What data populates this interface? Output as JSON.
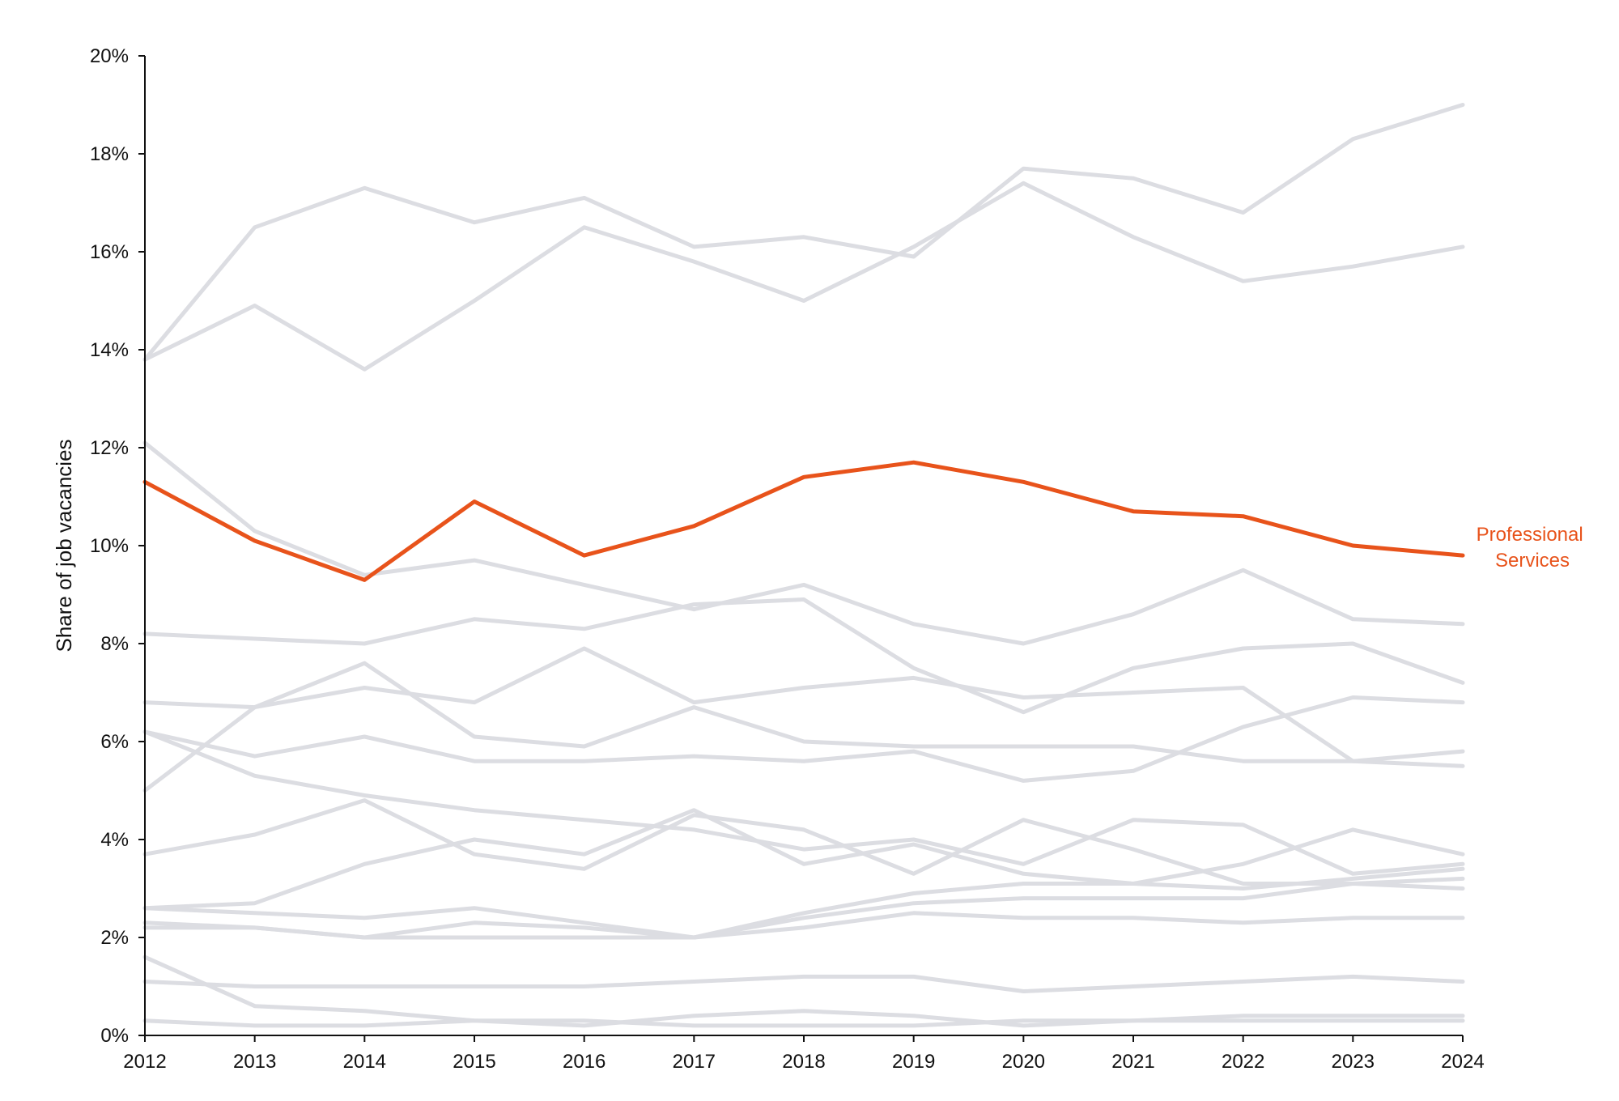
{
  "chart_data": {
    "type": "line",
    "title": "",
    "xlabel": "",
    "ylabel": "Share of job vacancies",
    "x": [
      2012,
      2013,
      2014,
      2015,
      2016,
      2017,
      2018,
      2019,
      2020,
      2021,
      2022,
      2023,
      2024
    ],
    "xlim": [
      2012,
      2024
    ],
    "ylim": [
      0,
      20
    ],
    "y_ticks": [
      "0%",
      "2%",
      "4%",
      "6%",
      "8%",
      "10%",
      "12%",
      "14%",
      "16%",
      "18%",
      "20%"
    ],
    "x_ticks": [
      "2012",
      "2013",
      "2014",
      "2015",
      "2016",
      "2017",
      "2018",
      "2019",
      "2020",
      "2021",
      "2022",
      "2023",
      "2024"
    ],
    "grid": false,
    "legend": "none",
    "colors": {
      "highlight": "#e8531b",
      "background_series": "#dcdde2",
      "axis": "#111111"
    },
    "highlight_label": [
      "Professional",
      "Services"
    ],
    "series": [
      {
        "name": "Professional Services",
        "highlight": true,
        "values": [
          11.3,
          10.1,
          9.3,
          10.9,
          9.8,
          10.4,
          11.4,
          11.7,
          11.3,
          10.7,
          10.6,
          10.0,
          9.8
        ]
      },
      {
        "values": [
          13.8,
          16.5,
          17.3,
          16.6,
          17.1,
          16.1,
          16.3,
          15.9,
          17.7,
          17.5,
          16.8,
          18.3,
          19.0
        ]
      },
      {
        "values": [
          13.8,
          14.9,
          13.6,
          15.0,
          16.5,
          15.8,
          15.0,
          16.1,
          17.4,
          16.3,
          15.4,
          15.7,
          16.1
        ]
      },
      {
        "values": [
          12.1,
          10.3,
          9.4,
          9.7,
          9.2,
          8.7,
          9.2,
          8.4,
          8.0,
          8.6,
          9.5,
          8.5,
          8.4
        ]
      },
      {
        "values": [
          8.2,
          8.1,
          8.0,
          8.5,
          8.3,
          8.8,
          8.9,
          7.5,
          6.6,
          7.5,
          7.9,
          8.0,
          7.2
        ]
      },
      {
        "values": [
          6.8,
          6.7,
          7.1,
          6.8,
          7.9,
          6.8,
          7.1,
          7.3,
          6.9,
          7.0,
          7.1,
          5.6,
          5.8
        ]
      },
      {
        "values": [
          5.0,
          6.7,
          7.6,
          6.1,
          5.9,
          6.7,
          6.0,
          5.9,
          5.9,
          5.9,
          5.6,
          5.6,
          5.5
        ]
      },
      {
        "values": [
          6.2,
          5.7,
          6.1,
          5.6,
          5.6,
          5.7,
          5.6,
          5.8,
          5.2,
          5.4,
          6.3,
          6.9,
          6.8
        ]
      },
      {
        "values": [
          6.2,
          5.3,
          4.9,
          4.6,
          4.4,
          4.2,
          3.8,
          4.0,
          3.5,
          4.4,
          4.3,
          3.3,
          3.5
        ]
      },
      {
        "values": [
          3.7,
          4.1,
          4.8,
          3.7,
          3.4,
          4.5,
          4.2,
          3.3,
          4.4,
          3.8,
          3.1,
          3.1,
          3.2
        ]
      },
      {
        "values": [
          2.6,
          2.7,
          3.5,
          4.0,
          3.7,
          4.6,
          3.5,
          3.9,
          3.3,
          3.1,
          3.5,
          4.2,
          3.7
        ]
      },
      {
        "values": [
          2.6,
          2.5,
          2.4,
          2.6,
          2.3,
          2.0,
          2.5,
          2.9,
          3.1,
          3.1,
          3.0,
          3.2,
          3.4
        ]
      },
      {
        "values": [
          2.3,
          2.2,
          2.0,
          2.3,
          2.2,
          2.0,
          2.4,
          2.7,
          2.8,
          2.8,
          2.8,
          3.1,
          3.0
        ]
      },
      {
        "values": [
          2.2,
          2.2,
          2.0,
          2.0,
          2.0,
          2.0,
          2.2,
          2.5,
          2.4,
          2.4,
          2.3,
          2.4,
          2.4
        ]
      },
      {
        "values": [
          1.1,
          1.0,
          1.0,
          1.0,
          1.0,
          1.1,
          1.2,
          1.2,
          0.9,
          1.0,
          1.1,
          1.2,
          1.1
        ]
      },
      {
        "values": [
          1.6,
          0.6,
          0.5,
          0.3,
          0.2,
          0.4,
          0.5,
          0.4,
          0.2,
          0.3,
          0.3,
          0.3,
          0.3
        ]
      },
      {
        "values": [
          0.3,
          0.2,
          0.2,
          0.3,
          0.3,
          0.2,
          0.2,
          0.2,
          0.3,
          0.3,
          0.4,
          0.4,
          0.4
        ]
      }
    ]
  }
}
